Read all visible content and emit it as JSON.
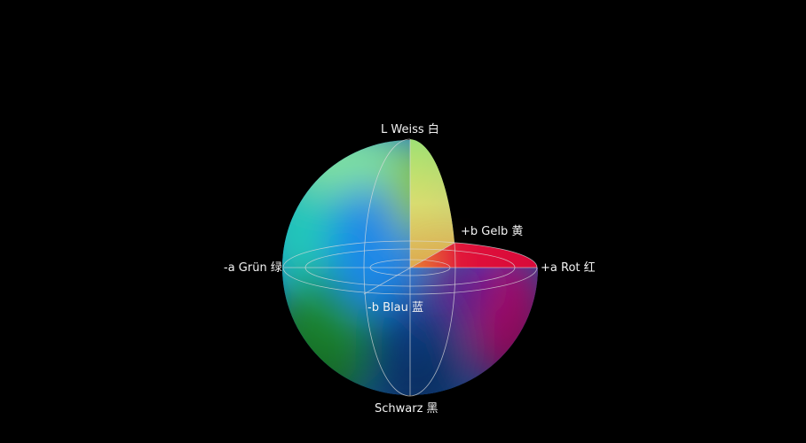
{
  "labels": {
    "top": "L Weiss 白",
    "plus_b": "+b Gelb 黄",
    "minus_a": "-a Grün 绿",
    "plus_a": "+a Rot 红",
    "minus_b": "-b Blau 蓝",
    "bottom": "Schwarz 黑"
  },
  "colors": {
    "background": "#000000",
    "green": "#1fa84a",
    "cyan": "#20c8c0",
    "blue": "#1a7fe0",
    "deep_blue": "#0a3a80",
    "yellow": "#e6e070",
    "lime": "#8fc21c",
    "red": "#e0103a",
    "magenta": "#c0107a",
    "grid": "#d8d8d8"
  }
}
